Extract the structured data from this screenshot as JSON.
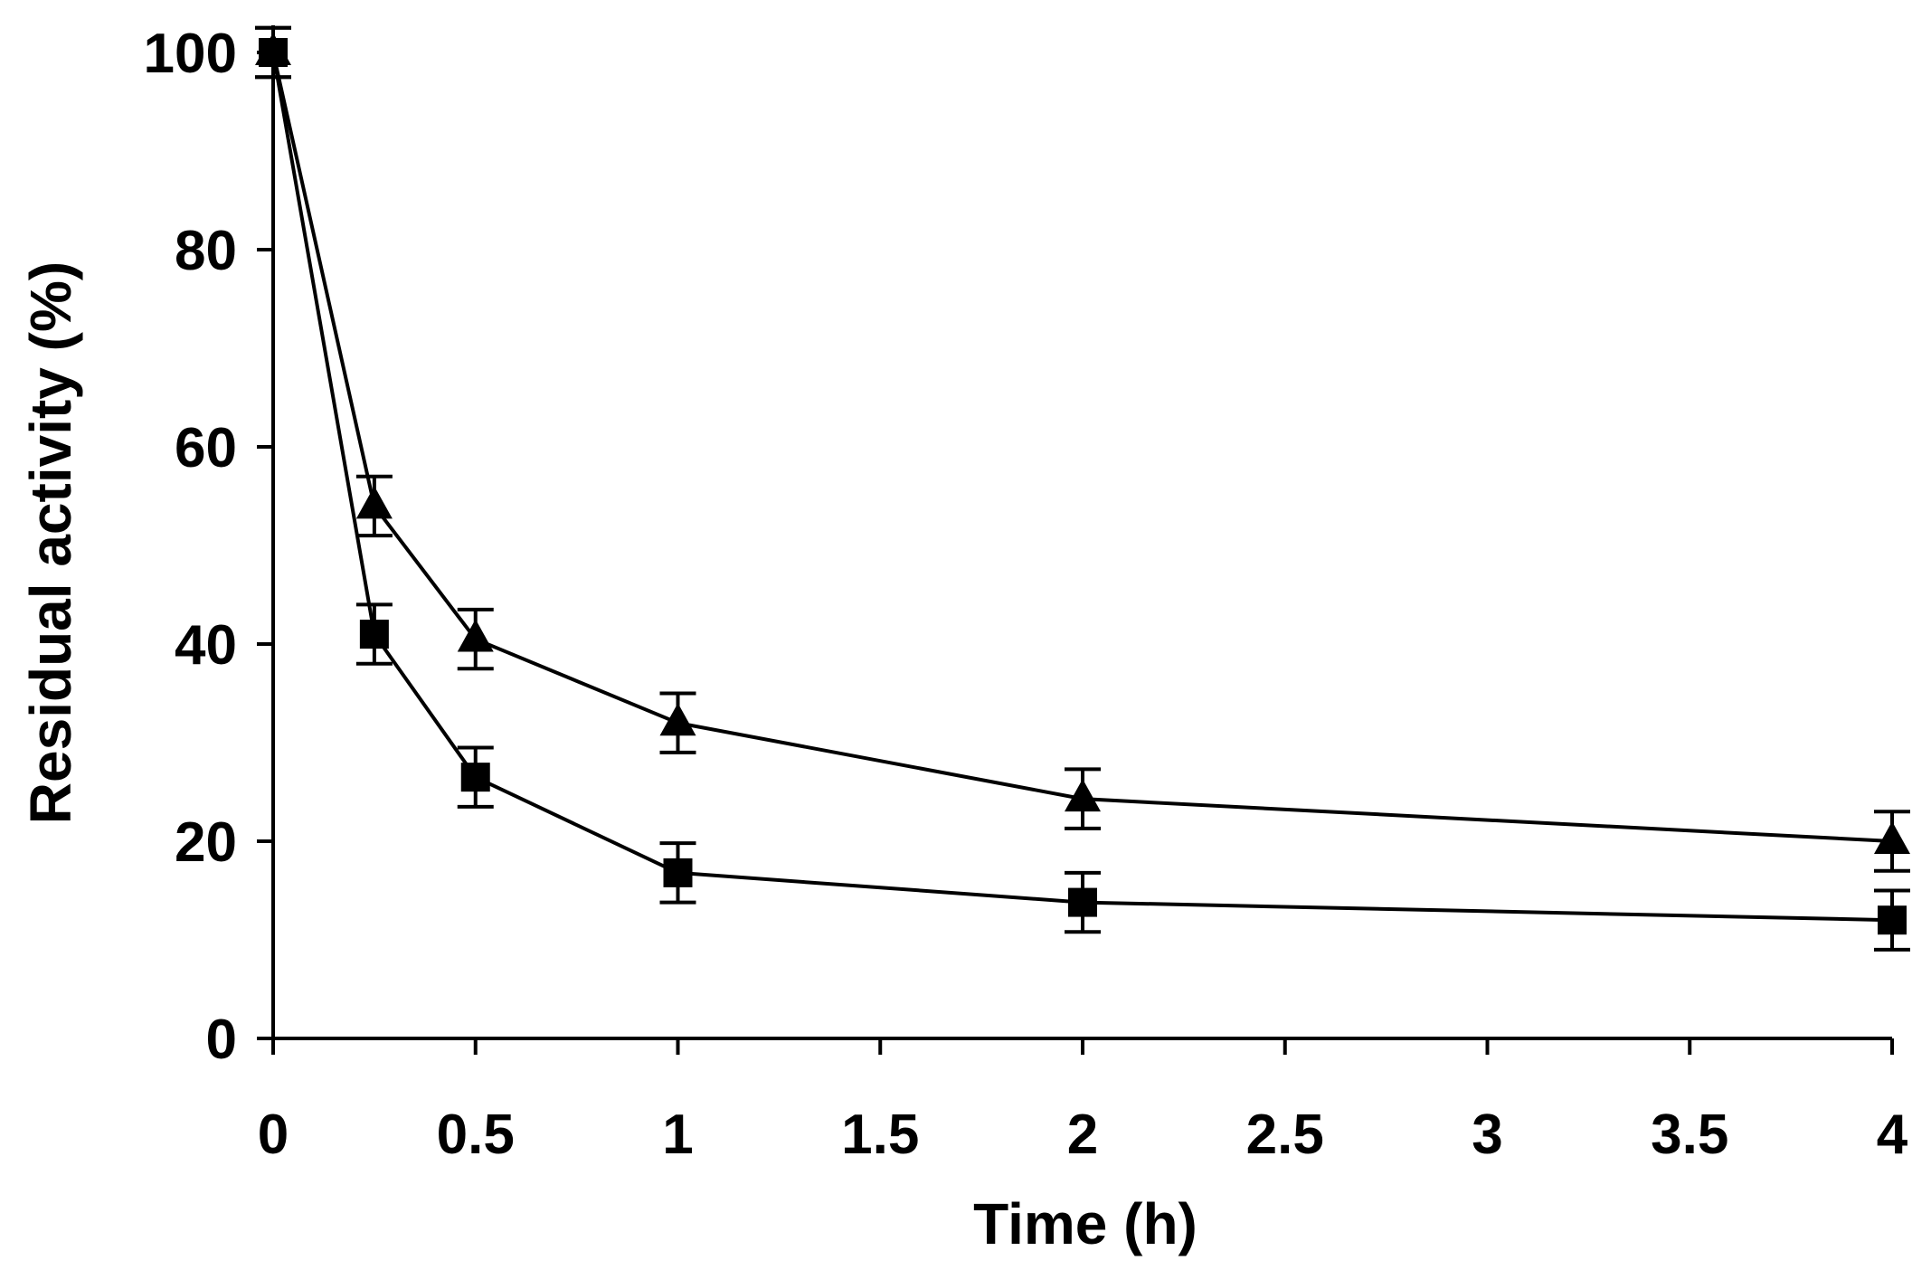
{
  "chart_data": {
    "type": "line",
    "title": "",
    "xlabel": "Time (h)",
    "ylabel": "Residual activity (%)",
    "xlim": [
      0,
      4
    ],
    "ylim": [
      0,
      100
    ],
    "xticks": [
      0,
      0.5,
      1,
      1.5,
      2,
      2.5,
      3,
      3.5,
      4
    ],
    "xtick_labels": [
      "0",
      "0.5",
      "1",
      "1.5",
      "2",
      "2.5",
      "3",
      "3.5",
      "4"
    ],
    "yticks": [
      0,
      20,
      40,
      60,
      80,
      100
    ],
    "ytick_labels": [
      "0",
      "20",
      "40",
      "60",
      "80",
      "100"
    ],
    "grid": false,
    "series": [
      {
        "name": "triangle",
        "marker": "triangle",
        "color": "#000000",
        "x": [
          0,
          0.25,
          0.5,
          1,
          2,
          4
        ],
        "y": [
          100,
          54,
          40.5,
          32,
          24.3,
          20
        ],
        "error": [
          2.5,
          3,
          3,
          3,
          3,
          3
        ]
      },
      {
        "name": "square",
        "marker": "square",
        "color": "#000000",
        "x": [
          0,
          0.25,
          0.5,
          1,
          2,
          4
        ],
        "y": [
          100,
          41,
          26.5,
          16.8,
          13.8,
          12
        ],
        "error": [
          2.5,
          3,
          3,
          3,
          3,
          3
        ]
      }
    ]
  }
}
